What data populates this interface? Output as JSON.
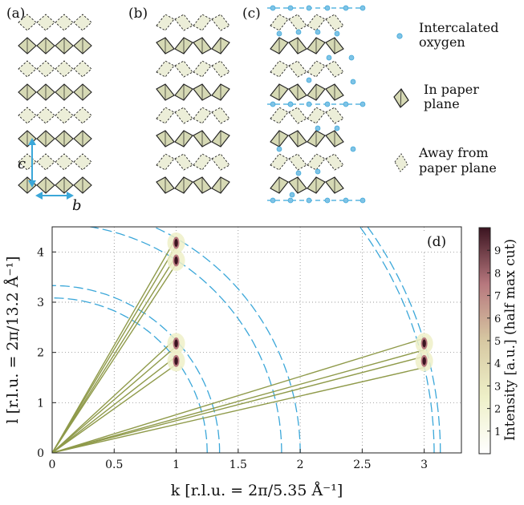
{
  "panels": {
    "a": "(a)",
    "b": "(b)",
    "c": "(c)",
    "d": "(d)"
  },
  "axes_a": {
    "c_label": "c",
    "b_label": "b"
  },
  "legend": {
    "oxygen_line1": "Intercalated",
    "oxygen_line2": "oxygen",
    "inplane_line1": "In paper",
    "inplane_line2": "plane",
    "away_line1": "Away from",
    "away_line2": "paper plane"
  },
  "colors": {
    "octa_fill": "#d6d9b4",
    "oxygen": "#7fc3e6",
    "accent_blue": "#3ba7d9",
    "line_green": "#8f9a4a"
  },
  "chart_data": {
    "type": "scatter",
    "xlabel": "k [r.l.u. = 2π/5.35 Å⁻¹]",
    "ylabel": "l [r.l.u. = 2π/13.2 Å⁻¹]",
    "xlim": [
      0,
      3.3
    ],
    "ylim": [
      0,
      4.5
    ],
    "xticks": [
      "0",
      "0.5",
      "1",
      "1.5",
      "2",
      "2.5",
      "3"
    ],
    "yticks": [
      "0",
      "1",
      "2",
      "3",
      "4"
    ],
    "grid": true,
    "peaks": [
      {
        "k": 1.0,
        "l": 4.18
      },
      {
        "k": 1.0,
        "l": 3.83
      },
      {
        "k": 1.0,
        "l": 2.18
      },
      {
        "k": 1.0,
        "l": 1.83
      },
      {
        "k": 3.0,
        "l": 2.18
      },
      {
        "k": 3.0,
        "l": 1.83
      }
    ],
    "scan_lines": [
      {
        "k": 1.0,
        "l": 4.28
      },
      {
        "k": 1.0,
        "l": 4.12
      },
      {
        "k": 1.0,
        "l": 3.92
      },
      {
        "k": 1.0,
        "l": 3.76
      },
      {
        "k": 1.0,
        "l": 2.28
      },
      {
        "k": 1.0,
        "l": 2.12
      },
      {
        "k": 1.0,
        "l": 1.92
      },
      {
        "k": 1.0,
        "l": 1.76
      },
      {
        "k": 3.0,
        "l": 2.28
      },
      {
        "k": 3.0,
        "l": 2.05
      },
      {
        "k": 3.0,
        "l": 1.92
      },
      {
        "k": 3.0,
        "l": 1.7
      }
    ],
    "arcs": [
      {
        "k_intercept": 1.25
      },
      {
        "k_intercept": 1.35
      },
      {
        "k_intercept": 1.85
      },
      {
        "k_intercept": 2.0
      },
      {
        "k_intercept": 3.08
      },
      {
        "k_intercept": 3.13
      }
    ],
    "colorbar": {
      "label": "Intensity [a.u.] (half max cut)",
      "ticks": [
        "1",
        "2",
        "3",
        "4",
        "5",
        "6",
        "7",
        "8",
        "9"
      ],
      "range": [
        0,
        10
      ]
    }
  }
}
